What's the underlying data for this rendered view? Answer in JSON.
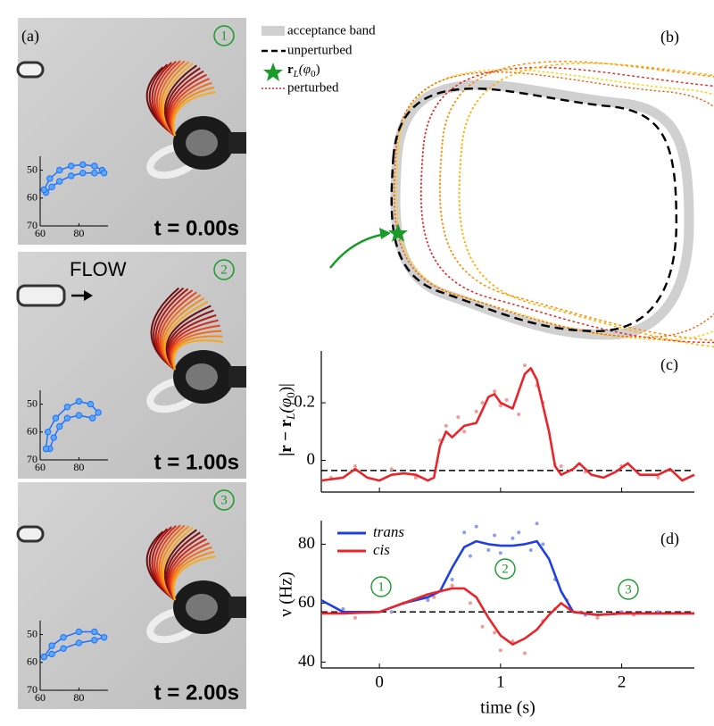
{
  "panel_a": {
    "label": "(a)",
    "flow_label": "FLOW",
    "frames": [
      {
        "number": "1",
        "time": "t = 0.00s",
        "inset": {
          "x": [
            62,
            65,
            70,
            76,
            82,
            88,
            92,
            93,
            88,
            82,
            76,
            70,
            66,
            63,
            62
          ],
          "values": [
            57,
            53,
            50,
            48.5,
            48,
            48.5,
            50,
            51,
            51,
            51,
            52,
            54,
            56,
            58,
            57
          ],
          "xlim": [
            60,
            95
          ],
          "ylim": [
            70,
            45
          ],
          "xticks": [
            60,
            80
          ],
          "yticks": [
            50,
            60,
            70
          ],
          "color": "#1e6fff"
        }
      },
      {
        "number": "2",
        "time": "t = 1.00s",
        "inset": {
          "x": [
            63,
            64,
            68,
            74,
            80,
            86,
            90,
            87,
            80,
            74,
            70,
            67,
            65,
            63
          ],
          "values": [
            66,
            60,
            55,
            51,
            49,
            50,
            53,
            55,
            54,
            55,
            58,
            62,
            66,
            66
          ],
          "xlim": [
            60,
            95
          ],
          "ylim": [
            70,
            45
          ],
          "xticks": [
            60,
            80
          ],
          "yticks": [
            50,
            60,
            70
          ],
          "color": "#1e6fff"
        }
      },
      {
        "number": "3",
        "time": "t = 2.00s",
        "inset": {
          "x": [
            62,
            66,
            72,
            80,
            88,
            93,
            88,
            80,
            72,
            66,
            62
          ],
          "values": [
            58,
            54,
            51,
            49,
            49,
            51,
            52,
            53,
            55,
            57,
            58
          ],
          "xlim": [
            60,
            95
          ],
          "ylim": [
            70,
            45
          ],
          "xticks": [
            60,
            80
          ],
          "yticks": [
            50,
            60,
            70
          ],
          "color": "#1e6fff"
        }
      }
    ]
  },
  "panel_b": {
    "label": "(b)",
    "legend": [
      "acceptance band",
      "unperturbed",
      [
        "r",
        "L",
        "(φ",
        "0",
        ")"
      ],
      "perturbed"
    ]
  },
  "chart_data": [
    {
      "type": "line",
      "label": "(c)",
      "y_label": [
        "|r − r",
        "L",
        "(φ",
        "0",
        ")|"
      ],
      "x": [
        -0.48,
        -0.3,
        -0.2,
        -0.1,
        0,
        0.1,
        0.2,
        0.3,
        0.4,
        0.45,
        0.5,
        0.55,
        0.6,
        0.7,
        0.8,
        0.9,
        0.95,
        1.0,
        1.1,
        1.2,
        1.25,
        1.3,
        1.4,
        1.45,
        1.5,
        1.6,
        1.65,
        1.75,
        1.85,
        1.95,
        2.05,
        2.15,
        2.3,
        2.4,
        2.5,
        2.6
      ],
      "series": [
        {
          "color": "#e8252a",
          "values": [
            -0.07,
            -0.06,
            -0.03,
            -0.06,
            -0.07,
            -0.05,
            -0.045,
            -0.05,
            -0.07,
            -0.06,
            0.05,
            0.1,
            0.08,
            0.12,
            0.13,
            0.22,
            0.23,
            0.2,
            0.18,
            0.3,
            0.32,
            0.28,
            0.1,
            -0.02,
            -0.05,
            -0.03,
            -0.01,
            -0.05,
            -0.06,
            -0.04,
            -0.01,
            -0.05,
            -0.05,
            -0.03,
            -0.07,
            -0.05
          ]
        }
      ],
      "scatter": [
        {
          "color": "#f39a9a",
          "x": [
            -0.4,
            -0.2,
            0.1,
            0.3,
            0.5,
            0.55,
            0.65,
            0.7,
            0.8,
            0.85,
            0.95,
            1.0,
            1.05,
            1.15,
            1.2,
            1.3,
            1.35,
            1.5,
            1.7,
            2.0,
            2.3
          ],
          "values": [
            -0.06,
            -0.02,
            -0.03,
            -0.06,
            0.07,
            0.12,
            0.15,
            0.1,
            0.17,
            0.2,
            0.24,
            0.19,
            0.21,
            0.16,
            0.33,
            0.26,
            0.2,
            -0.02,
            -0.04,
            -0.02,
            -0.06
          ]
        }
      ],
      "reference_line": -0.035,
      "xlim": [
        -0.48,
        2.6
      ],
      "ylim": [
        -0.11,
        0.38
      ],
      "xticks": [
        0,
        1,
        2
      ],
      "yticks": [
        0,
        0.2
      ]
    },
    {
      "type": "line",
      "label": "(d)",
      "y_label": "ν (Hz)",
      "x_label": "time (s)",
      "annotations": [
        "1",
        "2",
        "3"
      ],
      "x": [
        -0.48,
        -0.3,
        0,
        0.2,
        0.4,
        0.5,
        0.6,
        0.7,
        0.8,
        0.9,
        1.0,
        1.1,
        1.2,
        1.3,
        1.4,
        1.5,
        1.6,
        1.8,
        2.0,
        2.2,
        2.6
      ],
      "series": [
        {
          "name": "trans",
          "color": "#1f3fe0",
          "values": [
            61,
            57,
            57,
            60,
            62,
            64,
            72,
            79,
            81,
            80,
            79.5,
            79.5,
            80,
            81,
            75,
            64,
            57,
            56,
            56.5,
            56.5,
            56.5
          ]
        },
        {
          "name": "cis",
          "color": "#e8252a",
          "values": [
            56.5,
            56.5,
            57,
            60,
            63,
            64,
            65,
            65,
            62,
            55,
            49,
            46,
            48,
            51,
            56,
            60,
            57,
            56,
            56.5,
            56.5,
            56.5
          ]
        }
      ],
      "scatter": [
        {
          "color": "#8f9bf0",
          "x": [
            -0.3,
            0.1,
            0.4,
            0.6,
            0.7,
            0.75,
            0.8,
            0.9,
            0.95,
            1.0,
            1.1,
            1.15,
            1.25,
            1.3,
            1.35,
            1.45,
            1.7,
            2.0,
            2.3
          ],
          "values": [
            58,
            57,
            61,
            68,
            84,
            76,
            86,
            78,
            83,
            77,
            82,
            84,
            78,
            87,
            80,
            68,
            56,
            57,
            57
          ]
        },
        {
          "color": "#f39a9a",
          "x": [
            -0.2,
            0.2,
            0.45,
            0.6,
            0.75,
            0.85,
            0.95,
            1.0,
            1.1,
            1.2,
            1.35,
            1.45,
            1.55,
            1.8,
            2.1
          ],
          "values": [
            55,
            60,
            62,
            66,
            60,
            52,
            50,
            44,
            47,
            43,
            54,
            58,
            61,
            55,
            56
          ]
        }
      ],
      "reference_line": 57,
      "xlim": [
        -0.48,
        2.6
      ],
      "ylim": [
        38,
        88
      ],
      "xticks": [
        0,
        1,
        2
      ],
      "yticks": [
        40,
        60,
        80
      ]
    }
  ]
}
